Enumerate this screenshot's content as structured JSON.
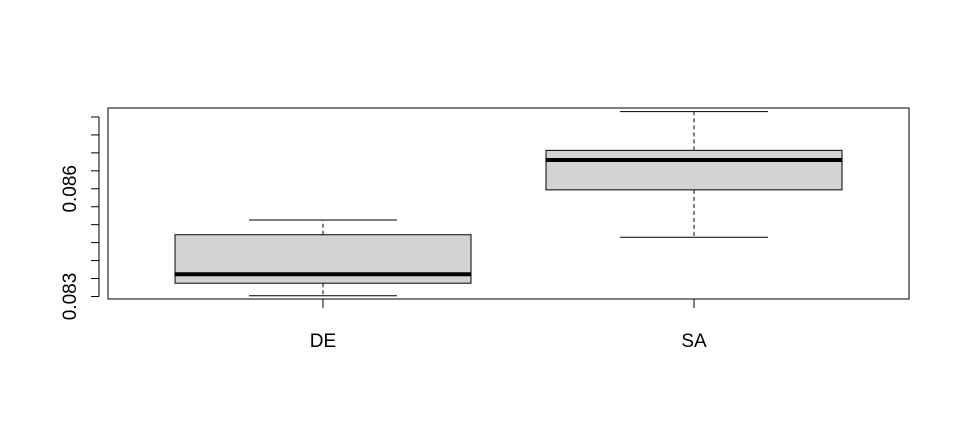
{
  "chart_data": {
    "type": "boxplot",
    "title": "",
    "xlabel": "",
    "ylabel": "",
    "categories": [
      "DE",
      "SA"
    ],
    "boxes": [
      {
        "category": "DE",
        "whisker_low": 0.08302,
        "q1": 0.08337,
        "median": 0.08362,
        "q3": 0.08472,
        "whisker_high": 0.08513
      },
      {
        "category": "SA",
        "whisker_low": 0.08465,
        "q1": 0.08597,
        "median": 0.0868,
        "q3": 0.08707,
        "whisker_high": 0.08815
      }
    ],
    "y_ticks": [
      0.083,
      0.0835,
      0.084,
      0.0845,
      0.085,
      0.0855,
      0.086,
      0.0865,
      0.087,
      0.0875,
      0.088
    ],
    "y_tick_labels": {
      "0.083": "0.083",
      "0.086": "0.086"
    },
    "ylim": [
      0.08293,
      0.08825
    ],
    "box_fill": "#d3d3d3",
    "line_color": "#000000",
    "grid": false,
    "legend": "none"
  }
}
